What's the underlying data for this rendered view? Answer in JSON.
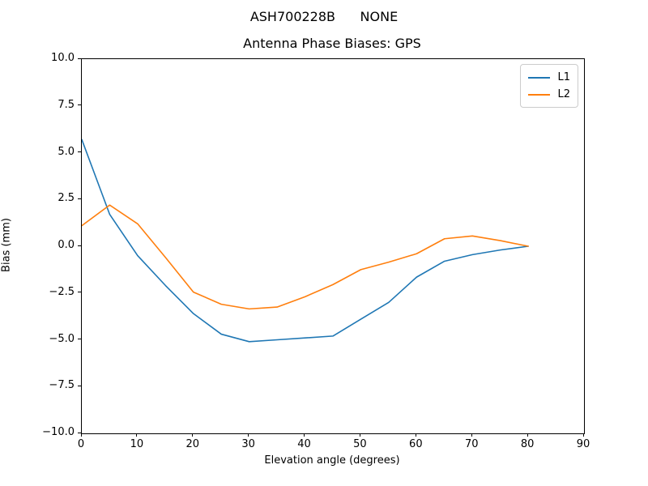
{
  "figure": {
    "suptitle": "ASH700228B      NONE",
    "title": "Antenna Phase Biases: GPS"
  },
  "axes": {
    "xlabel": "Elevation angle (degrees)",
    "ylabel": "Bias (mm)",
    "xtick_labels": [
      "0",
      "10",
      "20",
      "30",
      "40",
      "50",
      "60",
      "70",
      "80",
      "90"
    ],
    "ytick_labels": [
      "10.0",
      "7.5",
      "5.0",
      "2.5",
      "0.0",
      "−2.5",
      "−5.0",
      "−7.5",
      "−10.0"
    ]
  },
  "legend": {
    "entries": [
      {
        "label": "L1",
        "color": "#1f77b4"
      },
      {
        "label": "L2",
        "color": "#ff7f0e"
      }
    ]
  },
  "chart_data": {
    "type": "line",
    "suptitle": "ASH700228B      NONE",
    "title": "Antenna Phase Biases: GPS",
    "xlabel": "Elevation angle (degrees)",
    "ylabel": "Bias (mm)",
    "x": [
      0,
      5,
      10,
      15,
      20,
      25,
      30,
      35,
      40,
      45,
      50,
      55,
      60,
      65,
      70,
      75,
      80
    ],
    "series": [
      {
        "name": "L1",
        "color": "#1f77b4",
        "values": [
          5.7,
          1.7,
          -0.5,
          -2.1,
          -3.6,
          -4.7,
          -5.1,
          -5.0,
          -4.9,
          -4.8,
          -3.9,
          -3.0,
          -1.65,
          -0.8,
          -0.45,
          -0.2,
          0.0
        ]
      },
      {
        "name": "L2",
        "color": "#ff7f0e",
        "values": [
          1.1,
          2.2,
          1.2,
          -0.6,
          -2.45,
          -3.1,
          -3.35,
          -3.25,
          -2.7,
          -2.05,
          -1.25,
          -0.85,
          -0.4,
          0.4,
          0.55,
          0.3,
          0.0
        ]
      }
    ],
    "xlim": [
      0,
      90
    ],
    "ylim": [
      -10,
      10
    ],
    "xticks": [
      0,
      10,
      20,
      30,
      40,
      50,
      60,
      70,
      80,
      90
    ],
    "yticks": [
      10,
      7.5,
      5,
      2.5,
      0,
      -2.5,
      -5,
      -7.5,
      -10
    ],
    "grid": false,
    "legend_position": "upper right"
  }
}
